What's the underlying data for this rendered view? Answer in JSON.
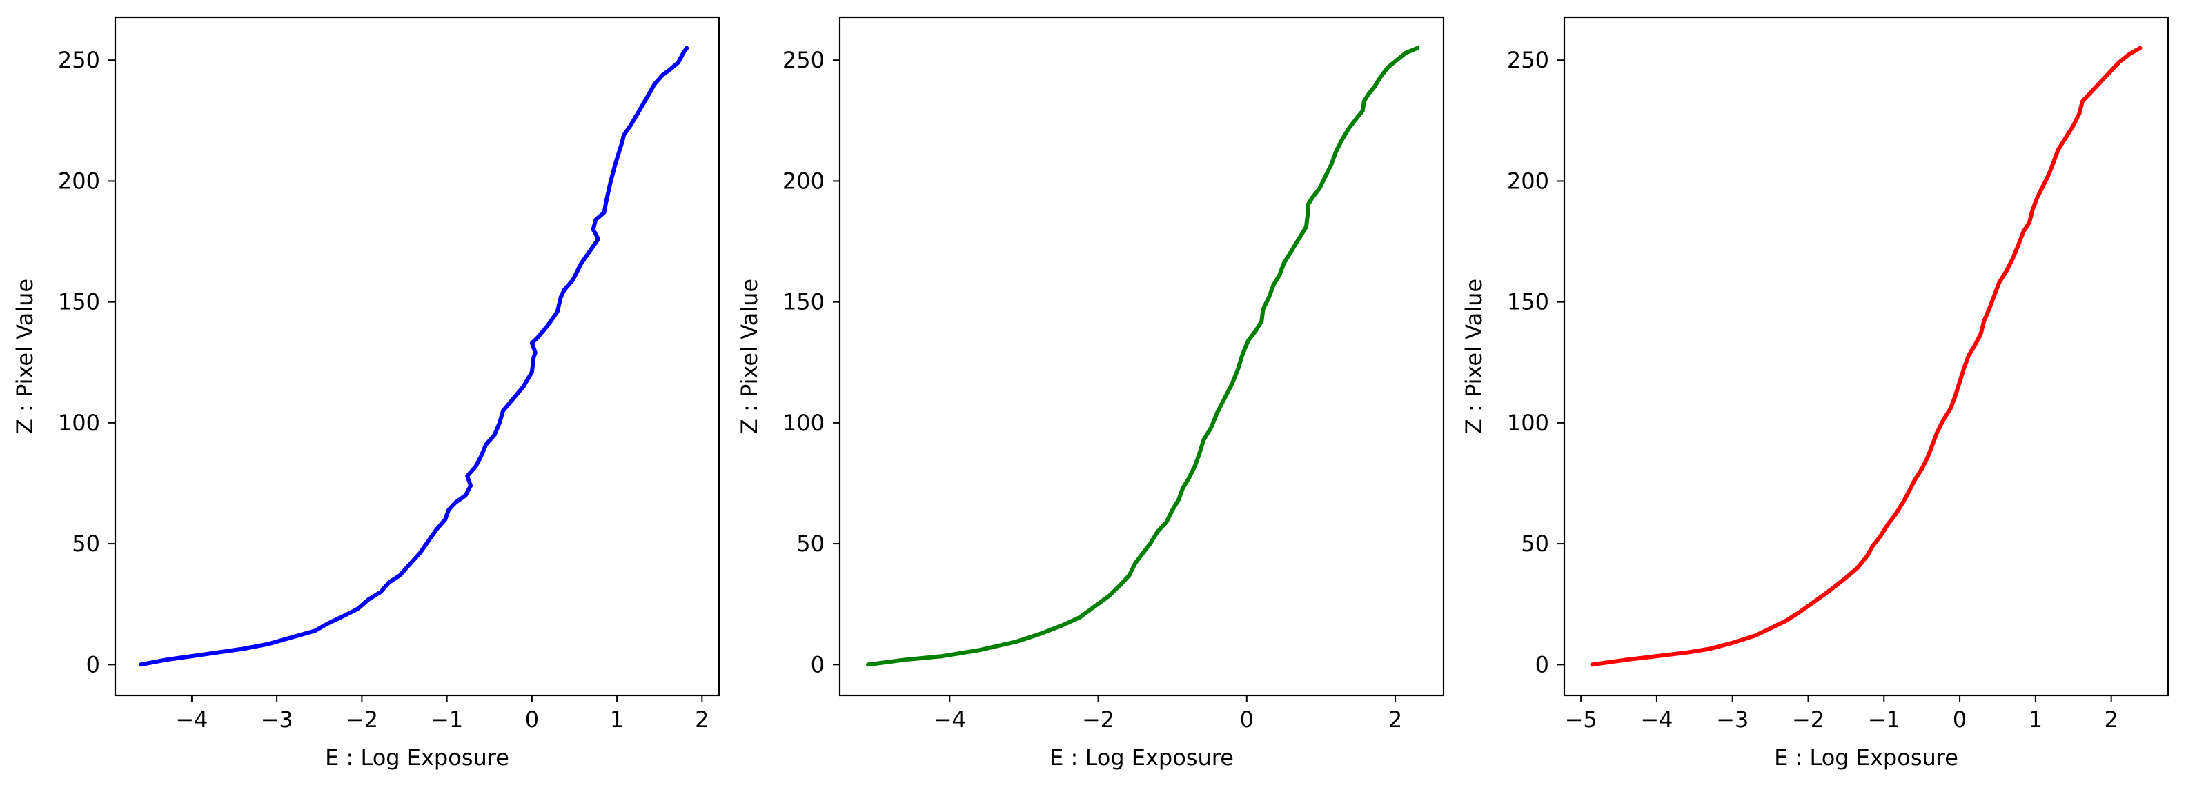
{
  "chart_data": [
    {
      "type": "line",
      "xlabel": "E : Log Exposure",
      "ylabel": "Z : Pixel Value",
      "xlim": [
        -4.9,
        2.2
      ],
      "ylim": [
        -12.75,
        267.75
      ],
      "x_ticks": [
        -4,
        -3,
        -2,
        -1,
        0,
        1,
        2
      ],
      "y_ticks": [
        0,
        50,
        100,
        150,
        200,
        250
      ],
      "grid": false,
      "legend": "none",
      "series": [
        {
          "color": "#0000ff",
          "points": [
            [
              -4.6,
              0
            ],
            [
              -4.3,
              2
            ],
            [
              -4.0,
              3.5
            ],
            [
              -3.7,
              5
            ],
            [
              -3.4,
              6.5
            ],
            [
              -3.1,
              8.5
            ],
            [
              -2.8,
              11.5
            ],
            [
              -2.55,
              14
            ],
            [
              -2.4,
              17
            ],
            [
              -2.25,
              19.5
            ],
            [
              -2.05,
              23
            ],
            [
              -1.92,
              27
            ],
            [
              -1.78,
              30
            ],
            [
              -1.68,
              34
            ],
            [
              -1.55,
              37
            ],
            [
              -1.45,
              41
            ],
            [
              -1.32,
              46
            ],
            [
              -1.2,
              52
            ],
            [
              -1.12,
              56
            ],
            [
              -1.02,
              60
            ],
            [
              -0.98,
              64
            ],
            [
              -0.9,
              67
            ],
            [
              -0.78,
              70
            ],
            [
              -0.72,
              74
            ],
            [
              -0.76,
              78
            ],
            [
              -0.66,
              82
            ],
            [
              -0.6,
              86
            ],
            [
              -0.54,
              91
            ],
            [
              -0.44,
              95
            ],
            [
              -0.38,
              100
            ],
            [
              -0.34,
              105
            ],
            [
              -0.22,
              110
            ],
            [
              -0.1,
              115
            ],
            [
              0.0,
              121
            ],
            [
              0.02,
              127
            ],
            [
              0.04,
              129
            ],
            [
              0.0,
              133
            ],
            [
              0.06,
              135
            ],
            [
              0.18,
              140
            ],
            [
              0.3,
              146
            ],
            [
              0.34,
              152
            ],
            [
              0.38,
              155
            ],
            [
              0.48,
              159
            ],
            [
              0.58,
              166
            ],
            [
              0.7,
              172
            ],
            [
              0.78,
              176
            ],
            [
              0.72,
              180
            ],
            [
              0.75,
              184
            ],
            [
              0.85,
              187
            ],
            [
              0.87,
              191
            ],
            [
              0.92,
              199
            ],
            [
              0.98,
              207
            ],
            [
              1.06,
              216
            ],
            [
              1.08,
              219
            ],
            [
              1.16,
              223
            ],
            [
              1.26,
              229
            ],
            [
              1.36,
              235
            ],
            [
              1.44,
              240
            ],
            [
              1.54,
              244
            ],
            [
              1.62,
              246
            ],
            [
              1.72,
              249
            ],
            [
              1.78,
              253
            ],
            [
              1.82,
              255
            ]
          ]
        }
      ]
    },
    {
      "type": "line",
      "xlabel": "E : Log Exposure",
      "ylabel": "Z : Pixel Value",
      "xlim": [
        -5.48,
        2.65
      ],
      "ylim": [
        -12.75,
        267.75
      ],
      "x_ticks": [
        -4,
        -2,
        0,
        2
      ],
      "y_ticks": [
        0,
        50,
        100,
        150,
        200,
        250
      ],
      "grid": false,
      "legend": "none",
      "series": [
        {
          "color": "#008000",
          "points": [
            [
              -5.1,
              0
            ],
            [
              -4.6,
              2
            ],
            [
              -4.1,
              3.5
            ],
            [
              -3.6,
              6
            ],
            [
              -3.1,
              9.5
            ],
            [
              -2.8,
              12.5
            ],
            [
              -2.5,
              16
            ],
            [
              -2.25,
              19.5
            ],
            [
              -2.05,
              24
            ],
            [
              -1.85,
              28.5
            ],
            [
              -1.7,
              33
            ],
            [
              -1.58,
              37
            ],
            [
              -1.5,
              42
            ],
            [
              -1.4,
              46
            ],
            [
              -1.3,
              50
            ],
            [
              -1.2,
              55
            ],
            [
              -1.08,
              59
            ],
            [
              -1.0,
              64
            ],
            [
              -0.92,
              68
            ],
            [
              -0.86,
              73
            ],
            [
              -0.78,
              77
            ],
            [
              -0.7,
              82
            ],
            [
              -0.64,
              87
            ],
            [
              -0.58,
              93
            ],
            [
              -0.48,
              98
            ],
            [
              -0.4,
              104
            ],
            [
              -0.3,
              110
            ],
            [
              -0.2,
              116
            ],
            [
              -0.12,
              122
            ],
            [
              -0.06,
              128
            ],
            [
              0.02,
              134
            ],
            [
              0.12,
              138
            ],
            [
              0.2,
              142
            ],
            [
              0.22,
              147
            ],
            [
              0.3,
              152
            ],
            [
              0.36,
              157
            ],
            [
              0.44,
              161
            ],
            [
              0.5,
              166
            ],
            [
              0.6,
              171
            ],
            [
              0.7,
              176
            ],
            [
              0.8,
              181
            ],
            [
              0.82,
              186
            ],
            [
              0.82,
              190
            ],
            [
              0.88,
              193
            ],
            [
              0.98,
              197
            ],
            [
              1.06,
              202
            ],
            [
              1.14,
              207
            ],
            [
              1.2,
              212
            ],
            [
              1.28,
              217
            ],
            [
              1.38,
              222
            ],
            [
              1.48,
              226
            ],
            [
              1.56,
              229
            ],
            [
              1.58,
              233
            ],
            [
              1.64,
              236
            ],
            [
              1.72,
              239
            ],
            [
              1.8,
              243
            ],
            [
              1.9,
              247
            ],
            [
              2.02,
              250
            ],
            [
              2.14,
              253
            ],
            [
              2.3,
              255
            ]
          ]
        }
      ]
    },
    {
      "type": "line",
      "xlabel": "E : Log Exposure",
      "ylabel": "Z : Pixel Value",
      "xlim": [
        -5.22,
        2.75
      ],
      "ylim": [
        -12.75,
        267.75
      ],
      "x_ticks": [
        -5,
        -4,
        -3,
        -2,
        -1,
        0,
        1,
        2
      ],
      "y_ticks": [
        0,
        50,
        100,
        150,
        200,
        250
      ],
      "grid": false,
      "legend": "none",
      "series": [
        {
          "color": "#ff0000",
          "points": [
            [
              -4.85,
              0
            ],
            [
              -4.4,
              2
            ],
            [
              -4.0,
              3.5
            ],
            [
              -3.6,
              5
            ],
            [
              -3.3,
              6.5
            ],
            [
              -3.0,
              9
            ],
            [
              -2.7,
              12
            ],
            [
              -2.5,
              15
            ],
            [
              -2.3,
              18
            ],
            [
              -2.1,
              22
            ],
            [
              -1.9,
              26.5
            ],
            [
              -1.7,
              31
            ],
            [
              -1.5,
              36
            ],
            [
              -1.35,
              40
            ],
            [
              -1.22,
              45
            ],
            [
              -1.15,
              49
            ],
            [
              -1.05,
              53
            ],
            [
              -0.95,
              58
            ],
            [
              -0.85,
              62
            ],
            [
              -0.75,
              67
            ],
            [
              -0.68,
              71
            ],
            [
              -0.6,
              76
            ],
            [
              -0.5,
              81
            ],
            [
              -0.42,
              86
            ],
            [
              -0.36,
              91
            ],
            [
              -0.3,
              96
            ],
            [
              -0.22,
              101
            ],
            [
              -0.12,
              106
            ],
            [
              -0.06,
              111
            ],
            [
              0.0,
              117
            ],
            [
              0.06,
              123
            ],
            [
              0.12,
              128
            ],
            [
              0.2,
              132
            ],
            [
              0.28,
              137
            ],
            [
              0.32,
              142
            ],
            [
              0.4,
              148
            ],
            [
              0.46,
              153
            ],
            [
              0.52,
              158
            ],
            [
              0.62,
              163
            ],
            [
              0.7,
              168
            ],
            [
              0.78,
              174
            ],
            [
              0.84,
              179
            ],
            [
              0.92,
              183
            ],
            [
              0.96,
              188
            ],
            [
              1.02,
              193
            ],
            [
              1.1,
              198
            ],
            [
              1.18,
              203
            ],
            [
              1.24,
              208
            ],
            [
              1.3,
              213
            ],
            [
              1.4,
              218
            ],
            [
              1.5,
              223
            ],
            [
              1.58,
              228
            ],
            [
              1.62,
              233
            ],
            [
              1.74,
              237
            ],
            [
              1.86,
              241
            ],
            [
              1.98,
              245
            ],
            [
              2.1,
              249
            ],
            [
              2.24,
              252.5
            ],
            [
              2.38,
              255
            ]
          ]
        }
      ]
    }
  ]
}
